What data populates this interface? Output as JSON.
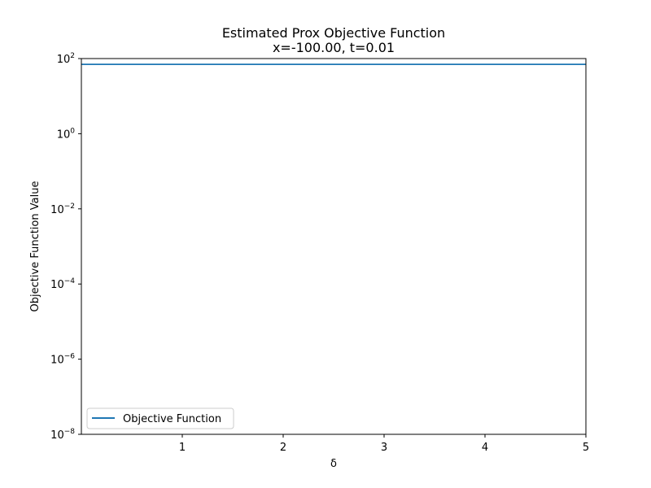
{
  "chart_data": {
    "type": "line",
    "title": "Estimated Prox Objective Function",
    "subtitle": "x=-100.00, t=0.01",
    "xlabel": "δ",
    "ylabel": "Objective Function Value",
    "xlim": [
      0.0,
      5.0
    ],
    "ylim": [
      1e-08,
      100
    ],
    "yscale": "log",
    "xticks": [
      1,
      2,
      3,
      4,
      5
    ],
    "xtick_labels": [
      "1",
      "2",
      "3",
      "4",
      "5"
    ],
    "yticks": [
      1e-08,
      1e-06,
      0.0001,
      0.01,
      1,
      100
    ],
    "ytick_labels": [
      {
        "base": "10",
        "exp": "−8"
      },
      {
        "base": "10",
        "exp": "−6"
      },
      {
        "base": "10",
        "exp": "−4"
      },
      {
        "base": "10",
        "exp": "−2"
      },
      {
        "base": "10",
        "exp": "0"
      },
      {
        "base": "10",
        "exp": "2"
      }
    ],
    "grid": false,
    "legend_position": "lower-left",
    "series": [
      {
        "name": "Objective Function",
        "color": "#1f77b4",
        "x": [
          0.0,
          5.0
        ],
        "y": [
          70,
          70
        ]
      }
    ]
  }
}
